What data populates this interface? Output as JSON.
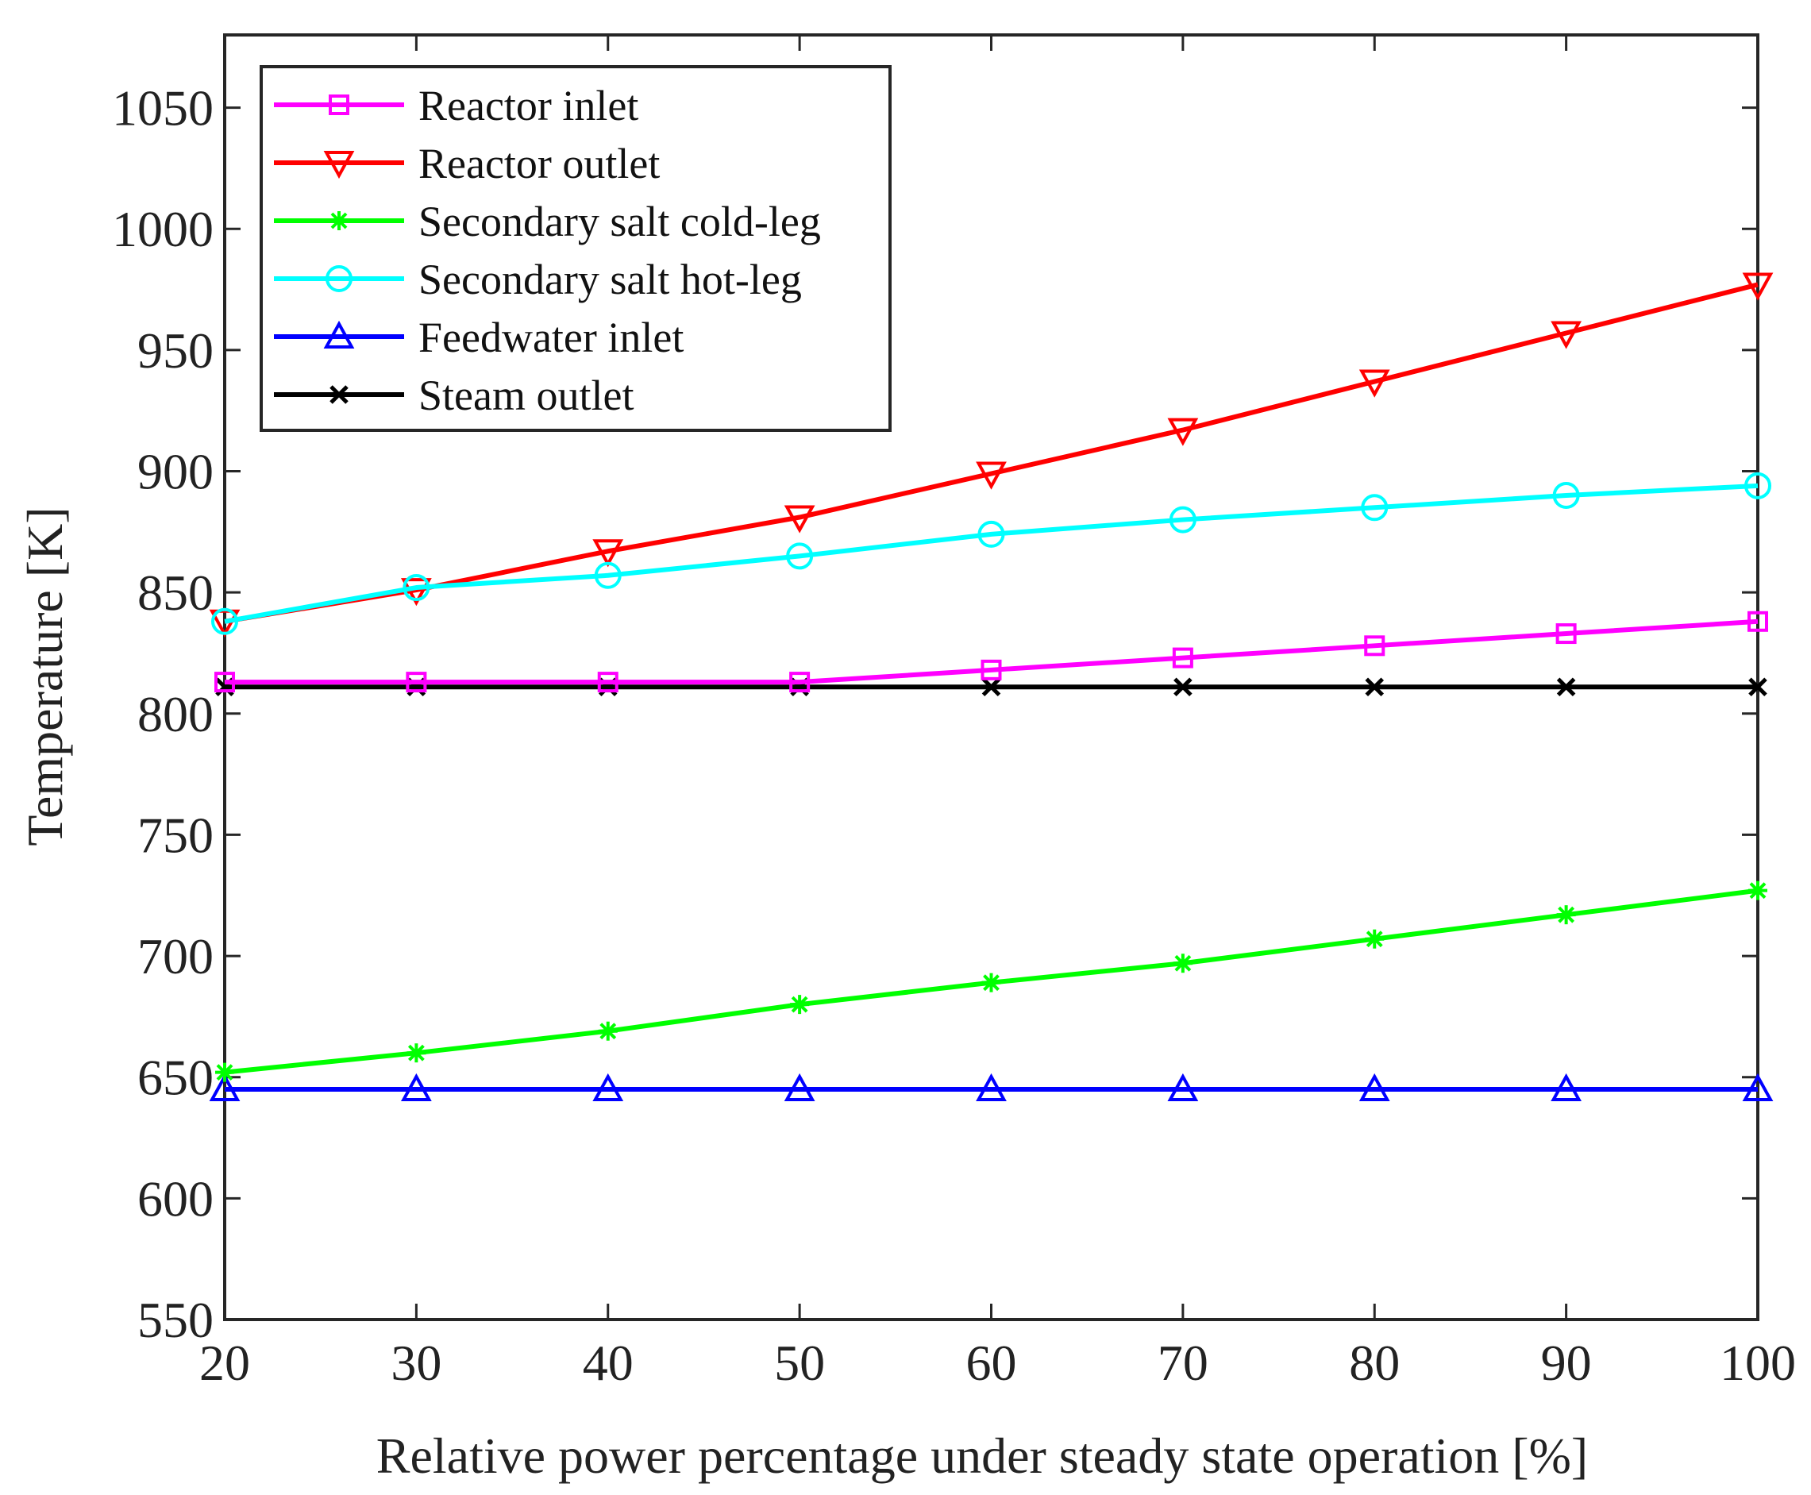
{
  "chart_data": {
    "type": "line",
    "title": "",
    "xlabel": "Relative power percentage under steady state operation [%]",
    "ylabel": "Temperature [K]",
    "x": [
      20,
      30,
      40,
      50,
      60,
      70,
      80,
      90,
      100
    ],
    "xlim": [
      20,
      100
    ],
    "ylim": [
      550,
      1080
    ],
    "xticks": [
      20,
      30,
      40,
      50,
      60,
      70,
      80,
      90,
      100
    ],
    "yticks": [
      550,
      600,
      650,
      700,
      750,
      800,
      850,
      900,
      950,
      1000,
      1050
    ],
    "grid": false,
    "legend_position": "top-left",
    "series": [
      {
        "name": "Reactor inlet",
        "color": "#ff00ff",
        "marker": "square",
        "values": [
          813,
          813,
          813,
          813,
          818,
          823,
          828,
          833,
          838
        ]
      },
      {
        "name": "Reactor outlet",
        "color": "#ff0000",
        "marker": "triangle-down",
        "values": [
          838,
          851,
          867,
          881,
          899,
          917,
          937,
          957,
          977
        ]
      },
      {
        "name": "Secondary salt cold-leg",
        "color": "#00ff00",
        "marker": "asterisk",
        "values": [
          652,
          660,
          669,
          680,
          689,
          697,
          707,
          717,
          727
        ]
      },
      {
        "name": "Secondary salt hot-leg",
        "color": "#00ffff",
        "marker": "circle",
        "values": [
          838,
          852,
          857,
          865,
          874,
          880,
          885,
          890,
          894
        ]
      },
      {
        "name": "Feedwater inlet",
        "color": "#0000ff",
        "marker": "triangle-up",
        "values": [
          645,
          645,
          645,
          645,
          645,
          645,
          645,
          645,
          645
        ]
      },
      {
        "name": "Steam outlet",
        "color": "#000000",
        "marker": "x",
        "values": [
          811,
          811,
          811,
          811,
          811,
          811,
          811,
          811,
          811
        ]
      }
    ]
  }
}
